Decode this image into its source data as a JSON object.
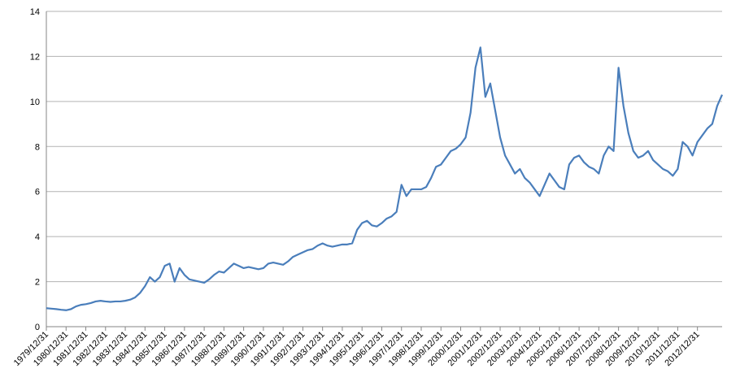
{
  "chart_data": {
    "type": "line",
    "categories": [
      "1979/12/31",
      null,
      null,
      null,
      "1980/12/31",
      null,
      null,
      null,
      "1981/12/31",
      null,
      null,
      null,
      "1982/12/31",
      null,
      null,
      null,
      "1983/12/31",
      null,
      null,
      null,
      "1984/12/31",
      null,
      null,
      null,
      "1985/12/31",
      null,
      null,
      null,
      "1986/12/31",
      null,
      null,
      null,
      "1987/12/31",
      null,
      null,
      null,
      "1988/12/31",
      null,
      null,
      null,
      "1989/12/31",
      null,
      null,
      null,
      "1990/12/31",
      null,
      null,
      null,
      "1991/12/31",
      null,
      null,
      null,
      "1992/12/31",
      null,
      null,
      null,
      "1993/12/31",
      null,
      null,
      null,
      "1994/12/31",
      null,
      null,
      null,
      "1995/12/31",
      null,
      null,
      null,
      "1996/12/31",
      null,
      null,
      null,
      "1997/12/31",
      null,
      null,
      null,
      "1998/12/31",
      null,
      null,
      null,
      "1999/12/31",
      null,
      null,
      null,
      "2000/12/31",
      null,
      null,
      null,
      "2001/12/31",
      null,
      null,
      null,
      "2002/12/31",
      null,
      null,
      null,
      "2003/12/31",
      null,
      null,
      null,
      "2004/12/31",
      null,
      null,
      null,
      "2005/12/31",
      null,
      null,
      null,
      "2006/12/31",
      null,
      null,
      null,
      "2007/12/31",
      null,
      null,
      null,
      "2008/12/31",
      null,
      null,
      null,
      "2009/12/31",
      null,
      null,
      null,
      "2010/12/31",
      null,
      null,
      null,
      "2011/12/31",
      null,
      null,
      null,
      "2012/12/31",
      null,
      null,
      null,
      null,
      null
    ],
    "values": [
      0.82,
      0.8,
      0.78,
      0.75,
      0.73,
      0.78,
      0.9,
      0.97,
      1.0,
      1.05,
      1.12,
      1.15,
      1.12,
      1.1,
      1.12,
      1.12,
      1.15,
      1.2,
      1.3,
      1.5,
      1.8,
      2.2,
      2.0,
      2.2,
      2.7,
      2.8,
      2.0,
      2.6,
      2.3,
      2.1,
      2.05,
      2.0,
      1.95,
      2.1,
      2.3,
      2.45,
      2.4,
      2.6,
      2.8,
      2.7,
      2.6,
      2.65,
      2.6,
      2.55,
      2.6,
      2.8,
      2.85,
      2.8,
      2.75,
      2.9,
      3.1,
      3.2,
      3.3,
      3.4,
      3.45,
      3.6,
      3.7,
      3.6,
      3.55,
      3.6,
      3.65,
      3.65,
      3.7,
      4.3,
      4.6,
      4.7,
      4.5,
      4.45,
      4.6,
      4.8,
      4.9,
      5.1,
      6.3,
      5.8,
      6.1,
      6.1,
      6.1,
      6.2,
      6.6,
      7.1,
      7.2,
      7.5,
      7.8,
      7.9,
      8.1,
      8.4,
      9.5,
      11.5,
      12.4,
      10.2,
      10.8,
      9.6,
      8.4,
      7.6,
      7.2,
      6.8,
      7.0,
      6.6,
      6.4,
      6.1,
      5.8,
      6.3,
      6.8,
      6.5,
      6.2,
      6.1,
      7.2,
      7.5,
      7.6,
      7.3,
      7.1,
      7.0,
      6.8,
      7.6,
      8.0,
      7.8,
      11.5,
      9.8,
      8.6,
      7.8,
      7.5,
      7.6,
      7.8,
      7.4,
      7.2,
      7.0,
      6.9,
      6.7,
      7.0,
      8.2,
      8.0,
      7.6,
      8.2,
      8.5,
      8.8,
      9.0,
      9.8,
      10.3
    ],
    "color": "#4a7ebb",
    "ylim": [
      0,
      14
    ],
    "yticks": [
      0,
      2,
      4,
      6,
      8,
      10,
      12,
      14
    ],
    "grid": true
  }
}
